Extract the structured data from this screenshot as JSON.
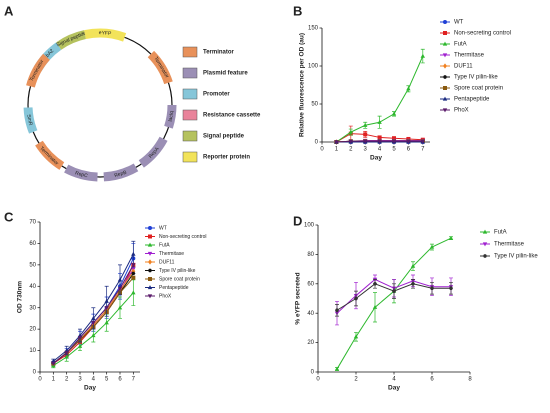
{
  "plasmid_map": {
    "panel_label": "A",
    "legend": [
      {
        "label": "Terminator",
        "color": "#e8915a"
      },
      {
        "label": "Plasmid feature",
        "color": "#9b8fb5"
      },
      {
        "label": "Promoter",
        "color": "#86c6d9"
      },
      {
        "label": "Resistance cassette",
        "color": "#e9839a"
      },
      {
        "label": "Signal peptide",
        "color": "#b5c25e"
      },
      {
        "label": "Reporter protein",
        "color": "#f2e35a"
      }
    ],
    "features": [
      {
        "label": "PpsbA2",
        "kind": 2
      },
      {
        "label": "Signal peptide",
        "kind": 4
      },
      {
        "label": "eYFP",
        "kind": 5
      },
      {
        "label": "Terminator",
        "kind": 0
      },
      {
        "label": "lacIq",
        "kind": 1
      },
      {
        "label": "RepA",
        "kind": 1
      },
      {
        "label": "RepB",
        "kind": 1
      },
      {
        "label": "RepC",
        "kind": 1
      },
      {
        "label": "Terminator",
        "kind": 0
      },
      {
        "label": "SmR",
        "kind": 2
      },
      {
        "label": "Terminator",
        "kind": 0
      }
    ]
  },
  "chart_data": [
    {
      "type": "line",
      "panel_label": "B",
      "x_label": "Day",
      "y_label": "Relative fluorescence per OD (au)",
      "x": [
        1,
        2,
        3,
        4,
        5,
        6,
        7
      ],
      "xlim": [
        0,
        7.5
      ],
      "xticks": [
        0,
        1,
        2,
        3,
        4,
        5,
        6,
        7
      ],
      "ylim": [
        0,
        150
      ],
      "yticks": [
        0,
        50,
        100,
        150
      ],
      "legend": "right",
      "series": [
        {
          "name": "WT",
          "color": "#1f3fd6",
          "marker": "circle",
          "values": [
            0,
            0,
            0,
            0,
            0,
            0,
            0
          ]
        },
        {
          "name": "Non-secreting control",
          "color": "#e02020",
          "marker": "square",
          "values": [
            0,
            11,
            10,
            6,
            5,
            4,
            3
          ],
          "errors": [
            0,
            10,
            4,
            2,
            1,
            1,
            1
          ]
        },
        {
          "name": "FutA",
          "color": "#2db82d",
          "marker": "triangle",
          "values": [
            0,
            13,
            22,
            26,
            37,
            70,
            113
          ],
          "errors": [
            0,
            4,
            4,
            8,
            3,
            4,
            9
          ]
        },
        {
          "name": "Thermitase",
          "color": "#a020d0",
          "marker": "triangle-down",
          "values": [
            0,
            1,
            2,
            2,
            2,
            2,
            2
          ]
        },
        {
          "name": "DUF11",
          "color": "#f08020",
          "marker": "diamond",
          "values": [
            0,
            1,
            1,
            1,
            1,
            1,
            1
          ]
        },
        {
          "name": "Type IV pilin-like",
          "color": "#111111",
          "marker": "hexagon",
          "values": [
            0,
            1,
            1,
            1,
            1,
            1,
            1
          ]
        },
        {
          "name": "Spore coat protein",
          "color": "#8a5a10",
          "marker": "square",
          "values": [
            0,
            1,
            1,
            1,
            1,
            1,
            1
          ]
        },
        {
          "name": "Pentapeptide",
          "color": "#1a2a80",
          "marker": "triangle",
          "values": [
            0,
            0,
            0,
            0,
            0,
            0,
            0
          ]
        },
        {
          "name": "PhoX",
          "color": "#5a1a6a",
          "marker": "triangle-down",
          "values": [
            0,
            1,
            1,
            1,
            1,
            1,
            1
          ]
        }
      ]
    },
    {
      "type": "line",
      "panel_label": "C",
      "x_label": "Day",
      "y_label": "OD 730nm",
      "x": [
        1,
        2,
        3,
        4,
        5,
        6,
        7
      ],
      "xlim": [
        0,
        7.5
      ],
      "xticks": [
        0,
        1,
        2,
        3,
        4,
        5,
        6,
        7
      ],
      "ylim": [
        0,
        70
      ],
      "yticks": [
        0,
        10,
        20,
        30,
        40,
        50,
        60,
        70
      ],
      "legend": "right",
      "series": [
        {
          "name": "WT",
          "color": "#1f3fd6",
          "marker": "circle",
          "values": [
            4,
            9,
            16,
            23,
            30,
            40,
            53
          ],
          "errors": [
            1,
            2,
            3,
            4,
            5,
            6,
            7
          ]
        },
        {
          "name": "Non-secreting control",
          "color": "#e02020",
          "marker": "square",
          "values": [
            4,
            8,
            14,
            21,
            28,
            37,
            50
          ]
        },
        {
          "name": "FutA",
          "color": "#2db82d",
          "marker": "triangle",
          "values": [
            3,
            7,
            12,
            17,
            23,
            30,
            37
          ],
          "errors": [
            1,
            2,
            2,
            3,
            4,
            5,
            6
          ]
        },
        {
          "name": "Thermitase",
          "color": "#a020d0",
          "marker": "triangle-down",
          "values": [
            4,
            9,
            15,
            22,
            29,
            38,
            48
          ]
        },
        {
          "name": "DUF11",
          "color": "#f08020",
          "marker": "diamond",
          "values": [
            4,
            9,
            15,
            22,
            29,
            38,
            47
          ]
        },
        {
          "name": "Type IV pilin-like",
          "color": "#111111",
          "marker": "hexagon",
          "values": [
            4,
            9,
            15,
            21,
            28,
            37,
            46
          ]
        },
        {
          "name": "Spore coat protein",
          "color": "#8a5a10",
          "marker": "square",
          "values": [
            4,
            9,
            15,
            21,
            28,
            37,
            44
          ]
        },
        {
          "name": "Pentapeptide",
          "color": "#1a2a80",
          "marker": "triangle",
          "values": [
            5,
            10,
            17,
            25,
            33,
            43,
            55
          ],
          "errors": [
            1,
            2,
            3,
            5,
            7,
            7,
            6
          ]
        },
        {
          "name": "PhoX",
          "color": "#5a1a6a",
          "marker": "triangle-down",
          "values": [
            4,
            9,
            16,
            23,
            30,
            39,
            50
          ]
        }
      ]
    },
    {
      "type": "line",
      "panel_label": "D",
      "x_label": "Day",
      "y_label": "% eYFP secreted",
      "x": [
        1,
        2,
        3,
        4,
        5,
        6,
        7
      ],
      "xlim": [
        0,
        8
      ],
      "xticks": [
        0,
        2,
        4,
        6,
        8
      ],
      "ylim": [
        0,
        100
      ],
      "yticks": [
        0,
        20,
        40,
        60,
        80,
        100
      ],
      "legend": "right",
      "series": [
        {
          "name": "FutA",
          "color": "#2db82d",
          "marker": "triangle",
          "values": [
            2,
            24,
            44,
            55,
            72,
            85,
            91
          ],
          "errors": [
            1,
            3,
            10,
            8,
            3,
            2,
            1
          ]
        },
        {
          "name": "Thermitase",
          "color": "#a020d0",
          "marker": "triangle-down",
          "values": [
            40,
            52,
            63,
            57,
            62,
            58,
            58
          ],
          "errors": [
            8,
            9,
            3,
            6,
            4,
            6,
            6
          ]
        },
        {
          "name": "Type IV pilin-like",
          "color": "#333333",
          "marker": "hexagon",
          "values": [
            42,
            50,
            60,
            55,
            60,
            57,
            57
          ],
          "errors": [
            4,
            5,
            3,
            5,
            3,
            4,
            4
          ]
        }
      ]
    }
  ]
}
